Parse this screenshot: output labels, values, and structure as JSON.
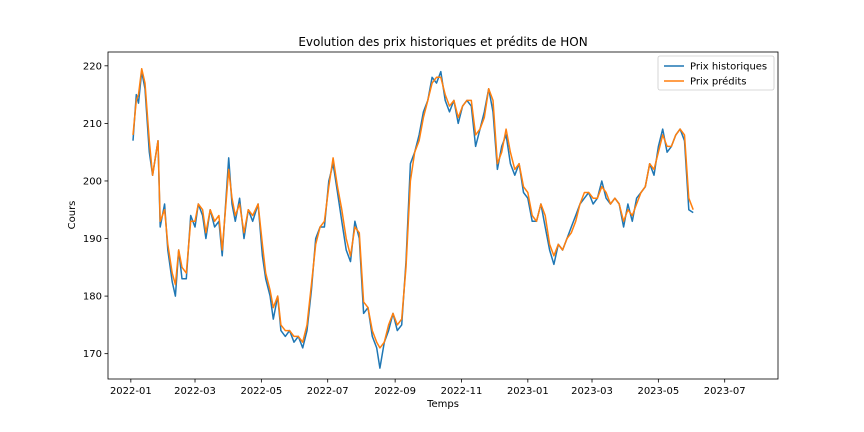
{
  "chart_data": {
    "type": "line",
    "title": "Evolution des prix historiques et prédits de HON",
    "xlabel": "Temps",
    "ylabel": "Cours",
    "xlim": [
      "2021-12-11",
      "2023-08-19"
    ],
    "ylim": [
      165.6,
      222.4
    ],
    "x_ticks": [
      "2022-01",
      "2022-03",
      "2022-05",
      "2022-07",
      "2022-09",
      "2022-11",
      "2023-01",
      "2023-03",
      "2023-05",
      "2023-07"
    ],
    "y_ticks": [
      170,
      180,
      190,
      200,
      210,
      220
    ],
    "grid": false,
    "legend_position": "upper right",
    "series": [
      {
        "name": "Prix historiques",
        "color": "#1f77b4",
        "points": [
          [
            "2022-01-03",
            207
          ],
          [
            "2022-01-06",
            215
          ],
          [
            "2022-01-08",
            213.5
          ],
          [
            "2022-01-11",
            219
          ],
          [
            "2022-01-14",
            216
          ],
          [
            "2022-01-18",
            205
          ],
          [
            "2022-01-21",
            201
          ],
          [
            "2022-01-26",
            207
          ],
          [
            "2022-01-28",
            192
          ],
          [
            "2022-02-01",
            196
          ],
          [
            "2022-02-04",
            188
          ],
          [
            "2022-02-08",
            182.5
          ],
          [
            "2022-02-11",
            180
          ],
          [
            "2022-02-14",
            188
          ],
          [
            "2022-02-17",
            183
          ],
          [
            "2022-02-21",
            183
          ],
          [
            "2022-02-25",
            194
          ],
          [
            "2022-03-01",
            192
          ],
          [
            "2022-03-04",
            196
          ],
          [
            "2022-03-08",
            194
          ],
          [
            "2022-03-11",
            190
          ],
          [
            "2022-03-15",
            195
          ],
          [
            "2022-03-19",
            192
          ],
          [
            "2022-03-23",
            193
          ],
          [
            "2022-03-26",
            187
          ],
          [
            "2022-04-01",
            204
          ],
          [
            "2022-04-04",
            196
          ],
          [
            "2022-04-07",
            193
          ],
          [
            "2022-04-11",
            197
          ],
          [
            "2022-04-15",
            190
          ],
          [
            "2022-04-19",
            195
          ],
          [
            "2022-04-23",
            193
          ],
          [
            "2022-04-28",
            196
          ],
          [
            "2022-05-02",
            187
          ],
          [
            "2022-05-05",
            183
          ],
          [
            "2022-05-09",
            180
          ],
          [
            "2022-05-12",
            176
          ],
          [
            "2022-05-16",
            180
          ],
          [
            "2022-05-19",
            174
          ],
          [
            "2022-05-23",
            173
          ],
          [
            "2022-05-27",
            174
          ],
          [
            "2022-05-31",
            172
          ],
          [
            "2022-06-04",
            173
          ],
          [
            "2022-06-08",
            171
          ],
          [
            "2022-06-12",
            174
          ],
          [
            "2022-06-16",
            181
          ],
          [
            "2022-06-20",
            190
          ],
          [
            "2022-06-24",
            192
          ],
          [
            "2022-06-28",
            192
          ],
          [
            "2022-07-02",
            200
          ],
          [
            "2022-07-06",
            203
          ],
          [
            "2022-07-10",
            198
          ],
          [
            "2022-07-14",
            193
          ],
          [
            "2022-07-18",
            188
          ],
          [
            "2022-07-22",
            186
          ],
          [
            "2022-07-26",
            193
          ],
          [
            "2022-07-30",
            190
          ],
          [
            "2022-08-03",
            177
          ],
          [
            "2022-08-07",
            178
          ],
          [
            "2022-08-11",
            173
          ],
          [
            "2022-08-15",
            171
          ],
          [
            "2022-08-18",
            167.5
          ],
          [
            "2022-08-22",
            172
          ],
          [
            "2022-08-26",
            174
          ],
          [
            "2022-08-30",
            177
          ],
          [
            "2022-09-03",
            174
          ],
          [
            "2022-09-07",
            175
          ],
          [
            "2022-09-11",
            186
          ],
          [
            "2022-09-15",
            203
          ],
          [
            "2022-09-19",
            205
          ],
          [
            "2022-09-23",
            208
          ],
          [
            "2022-09-27",
            212
          ],
          [
            "2022-10-01",
            214
          ],
          [
            "2022-10-05",
            218
          ],
          [
            "2022-10-09",
            217
          ],
          [
            "2022-10-13",
            219
          ],
          [
            "2022-10-17",
            214
          ],
          [
            "2022-10-21",
            212
          ],
          [
            "2022-10-25",
            214
          ],
          [
            "2022-10-29",
            210
          ],
          [
            "2022-11-02",
            213
          ],
          [
            "2022-11-06",
            214
          ],
          [
            "2022-11-10",
            213
          ],
          [
            "2022-11-14",
            206
          ],
          [
            "2022-11-18",
            209
          ],
          [
            "2022-11-22",
            212
          ],
          [
            "2022-11-26",
            216
          ],
          [
            "2022-11-30",
            212
          ],
          [
            "2022-12-04",
            202
          ],
          [
            "2022-12-08",
            206
          ],
          [
            "2022-12-12",
            208
          ],
          [
            "2022-12-16",
            203
          ],
          [
            "2022-12-20",
            201
          ],
          [
            "2022-12-24",
            203
          ],
          [
            "2022-12-28",
            198
          ],
          [
            "2023-01-01",
            197
          ],
          [
            "2023-01-05",
            193
          ],
          [
            "2023-01-09",
            193
          ],
          [
            "2023-01-13",
            196
          ],
          [
            "2023-01-17",
            192
          ],
          [
            "2023-01-21",
            188
          ],
          [
            "2023-01-25",
            185.5
          ],
          [
            "2023-01-29",
            189
          ],
          [
            "2023-02-02",
            188
          ],
          [
            "2023-02-06",
            190
          ],
          [
            "2023-02-10",
            192
          ],
          [
            "2023-02-14",
            194
          ],
          [
            "2023-02-18",
            196
          ],
          [
            "2023-02-22",
            197
          ],
          [
            "2023-02-26",
            198
          ],
          [
            "2023-03-02",
            196
          ],
          [
            "2023-03-06",
            197
          ],
          [
            "2023-03-10",
            200
          ],
          [
            "2023-03-14",
            197
          ],
          [
            "2023-03-18",
            196
          ],
          [
            "2023-03-22",
            197
          ],
          [
            "2023-03-26",
            196
          ],
          [
            "2023-03-30",
            192
          ],
          [
            "2023-04-03",
            196
          ],
          [
            "2023-04-07",
            193
          ],
          [
            "2023-04-11",
            197
          ],
          [
            "2023-04-15",
            198
          ],
          [
            "2023-04-19",
            199
          ],
          [
            "2023-04-23",
            203
          ],
          [
            "2023-04-27",
            201
          ],
          [
            "2023-05-01",
            206
          ],
          [
            "2023-05-05",
            209
          ],
          [
            "2023-05-09",
            205
          ],
          [
            "2023-05-13",
            206
          ],
          [
            "2023-05-17",
            208
          ],
          [
            "2023-05-21",
            209
          ],
          [
            "2023-05-25",
            207
          ],
          [
            "2023-05-29",
            195
          ],
          [
            "2023-06-02",
            194.5
          ]
        ]
      },
      {
        "name": "Prix prédits",
        "color": "#ff7f0e",
        "points": [
          [
            "2022-01-03",
            208
          ],
          [
            "2022-01-06",
            214
          ],
          [
            "2022-01-08",
            215
          ],
          [
            "2022-01-11",
            219.5
          ],
          [
            "2022-01-14",
            217
          ],
          [
            "2022-01-18",
            207
          ],
          [
            "2022-01-21",
            201
          ],
          [
            "2022-01-26",
            207
          ],
          [
            "2022-01-28",
            193
          ],
          [
            "2022-02-01",
            195
          ],
          [
            "2022-02-04",
            189
          ],
          [
            "2022-02-08",
            184
          ],
          [
            "2022-02-11",
            182
          ],
          [
            "2022-02-14",
            188
          ],
          [
            "2022-02-17",
            185
          ],
          [
            "2022-02-21",
            184
          ],
          [
            "2022-02-25",
            193
          ],
          [
            "2022-03-01",
            193
          ],
          [
            "2022-03-04",
            196
          ],
          [
            "2022-03-08",
            195
          ],
          [
            "2022-03-11",
            191
          ],
          [
            "2022-03-15",
            195
          ],
          [
            "2022-03-19",
            193
          ],
          [
            "2022-03-23",
            194
          ],
          [
            "2022-03-26",
            188
          ],
          [
            "2022-04-01",
            202
          ],
          [
            "2022-04-04",
            197
          ],
          [
            "2022-04-07",
            194
          ],
          [
            "2022-04-11",
            196
          ],
          [
            "2022-04-15",
            191
          ],
          [
            "2022-04-19",
            195
          ],
          [
            "2022-04-23",
            194
          ],
          [
            "2022-04-28",
            196
          ],
          [
            "2022-05-02",
            189
          ],
          [
            "2022-05-05",
            184
          ],
          [
            "2022-05-09",
            181
          ],
          [
            "2022-05-12",
            178
          ],
          [
            "2022-05-16",
            180
          ],
          [
            "2022-05-19",
            175
          ],
          [
            "2022-05-23",
            174
          ],
          [
            "2022-05-27",
            174
          ],
          [
            "2022-05-31",
            173
          ],
          [
            "2022-06-04",
            173
          ],
          [
            "2022-06-08",
            172
          ],
          [
            "2022-06-12",
            175
          ],
          [
            "2022-06-16",
            182
          ],
          [
            "2022-06-20",
            189
          ],
          [
            "2022-06-24",
            192
          ],
          [
            "2022-06-28",
            193
          ],
          [
            "2022-07-02",
            199
          ],
          [
            "2022-07-06",
            204
          ],
          [
            "2022-07-10",
            199
          ],
          [
            "2022-07-14",
            195
          ],
          [
            "2022-07-18",
            190
          ],
          [
            "2022-07-22",
            187
          ],
          [
            "2022-07-26",
            192
          ],
          [
            "2022-07-30",
            191
          ],
          [
            "2022-08-03",
            179
          ],
          [
            "2022-08-07",
            178
          ],
          [
            "2022-08-11",
            174
          ],
          [
            "2022-08-15",
            172
          ],
          [
            "2022-08-18",
            171
          ],
          [
            "2022-08-22",
            172
          ],
          [
            "2022-08-26",
            175
          ],
          [
            "2022-08-30",
            177
          ],
          [
            "2022-09-03",
            175
          ],
          [
            "2022-09-07",
            176
          ],
          [
            "2022-09-11",
            185
          ],
          [
            "2022-09-15",
            200
          ],
          [
            "2022-09-19",
            205
          ],
          [
            "2022-09-23",
            207
          ],
          [
            "2022-09-27",
            211
          ],
          [
            "2022-10-01",
            214
          ],
          [
            "2022-10-05",
            217
          ],
          [
            "2022-10-09",
            218
          ],
          [
            "2022-10-13",
            218
          ],
          [
            "2022-10-17",
            215
          ],
          [
            "2022-10-21",
            213
          ],
          [
            "2022-10-25",
            214
          ],
          [
            "2022-10-29",
            211
          ],
          [
            "2022-11-02",
            213
          ],
          [
            "2022-11-06",
            214
          ],
          [
            "2022-11-10",
            214
          ],
          [
            "2022-11-14",
            208
          ],
          [
            "2022-11-18",
            209
          ],
          [
            "2022-11-22",
            211
          ],
          [
            "2022-11-26",
            216
          ],
          [
            "2022-11-30",
            214
          ],
          [
            "2022-12-04",
            203
          ],
          [
            "2022-12-08",
            205
          ],
          [
            "2022-12-12",
            209
          ],
          [
            "2022-12-16",
            205
          ],
          [
            "2022-12-20",
            202
          ],
          [
            "2022-12-24",
            203
          ],
          [
            "2022-12-28",
            199
          ],
          [
            "2023-01-01",
            198
          ],
          [
            "2023-01-05",
            194
          ],
          [
            "2023-01-09",
            193
          ],
          [
            "2023-01-13",
            196
          ],
          [
            "2023-01-17",
            194
          ],
          [
            "2023-01-21",
            189
          ],
          [
            "2023-01-25",
            187
          ],
          [
            "2023-01-29",
            189
          ],
          [
            "2023-02-02",
            188
          ],
          [
            "2023-02-06",
            190
          ],
          [
            "2023-02-10",
            191
          ],
          [
            "2023-02-14",
            193
          ],
          [
            "2023-02-18",
            196
          ],
          [
            "2023-02-22",
            198
          ],
          [
            "2023-02-26",
            198
          ],
          [
            "2023-03-02",
            197
          ],
          [
            "2023-03-06",
            197
          ],
          [
            "2023-03-10",
            199
          ],
          [
            "2023-03-14",
            198
          ],
          [
            "2023-03-18",
            196
          ],
          [
            "2023-03-22",
            197
          ],
          [
            "2023-03-26",
            196
          ],
          [
            "2023-03-30",
            193
          ],
          [
            "2023-04-03",
            195
          ],
          [
            "2023-04-07",
            194
          ],
          [
            "2023-04-11",
            196
          ],
          [
            "2023-04-15",
            198
          ],
          [
            "2023-04-19",
            199
          ],
          [
            "2023-04-23",
            203
          ],
          [
            "2023-04-27",
            202
          ],
          [
            "2023-05-01",
            205
          ],
          [
            "2023-05-05",
            208
          ],
          [
            "2023-05-09",
            206
          ],
          [
            "2023-05-13",
            206
          ],
          [
            "2023-05-17",
            208
          ],
          [
            "2023-05-21",
            209
          ],
          [
            "2023-05-25",
            208
          ],
          [
            "2023-05-29",
            197
          ],
          [
            "2023-06-02",
            195
          ]
        ]
      }
    ]
  }
}
